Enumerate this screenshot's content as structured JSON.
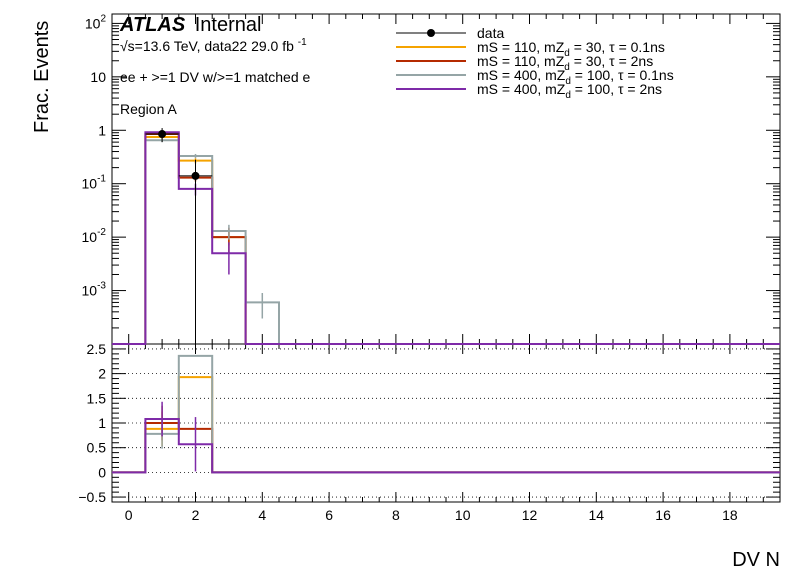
{
  "header": {
    "atlas": "ATLAS",
    "internal": "Internal",
    "energy": "√s=13.6 TeV, data22 29.0 fb",
    "energy_sup": "-1",
    "selection": "ee + >=1 DV w/>=1 matched e",
    "region": "Region A"
  },
  "colors": {
    "data": "#000000",
    "mS110_tau01": "#f5a300",
    "mS110_tau2": "#b52a00",
    "mS400_tau01": "#95a5a6",
    "mS400_tau2": "#7e2aa8"
  },
  "chart_data": [
    {
      "type": "line",
      "panel": "main",
      "ylabel": "Frac. Events",
      "xlabel": "DV N",
      "xlim": [
        -0.5,
        19.5
      ],
      "ylim": [
        0.0001,
        150
      ],
      "yscale": "log",
      "yticks": [
        0.001,
        0.01,
        0.1,
        1,
        10,
        100
      ],
      "ytick_labels": [
        {
          "base": "10",
          "exp": "-3"
        },
        {
          "base": "10",
          "exp": "-2"
        },
        {
          "base": "10",
          "exp": "-1"
        },
        {
          "base": "1",
          "exp": ""
        },
        {
          "base": "10",
          "exp": ""
        },
        {
          "base": "10",
          "exp": "2"
        }
      ],
      "legend_position": "top-right",
      "bin_edges": [
        0.5,
        1.5,
        2.5,
        3.5,
        4.5
      ],
      "series": [
        {
          "key": "mS110_tau01",
          "name": "mS = 110, mZ",
          "sub": "d",
          "name_rest": " = 30, τ = 0.1ns",
          "values": [
            0.75,
            0.27,
            0.01,
            0.0
          ],
          "errors": [
            0.05,
            0.03,
            0.003,
            0
          ]
        },
        {
          "key": "mS110_tau2",
          "name": "mS = 110, mZ",
          "sub": "d",
          "name_rest": " = 30, τ = 2ns",
          "values": [
            0.85,
            0.13,
            0.01,
            0.0
          ],
          "errors": [
            0.05,
            0.02,
            0.005,
            0
          ]
        },
        {
          "key": "mS400_tau01",
          "name": "mS = 400, mZ",
          "sub": "d",
          "name_rest": " = 100, τ = 0.1ns",
          "values": [
            0.65,
            0.33,
            0.013,
            0.0006
          ],
          "errors": [
            0.05,
            0.03,
            0.004,
            0.0003
          ]
        },
        {
          "key": "mS400_tau2",
          "name": "mS = 400, mZ",
          "sub": "d",
          "name_rest": " = 100, τ = 2ns",
          "values": [
            0.92,
            0.08,
            0.005,
            0.0
          ],
          "errors": [
            0.05,
            0.02,
            0.003,
            0
          ]
        }
      ],
      "data": {
        "key": "data",
        "name": "data",
        "x": [
          1,
          2
        ],
        "y": [
          0.85,
          0.14
        ],
        "yerr_low": [
          0.25,
          0.13999
        ],
        "yerr_high": [
          0.25,
          0.14
        ]
      }
    },
    {
      "type": "line",
      "panel": "ratio",
      "xlabel": "DV N",
      "xlim": [
        -0.5,
        19.5
      ],
      "ylim": [
        -0.6,
        2.6
      ],
      "xticks": [
        0,
        2,
        4,
        6,
        8,
        10,
        12,
        14,
        16,
        18
      ],
      "yticks": [
        -0.5,
        0,
        0.5,
        1,
        1.5,
        2,
        2.5
      ],
      "ytick_labels": [
        "−0.5",
        "0",
        "0.5",
        "1",
        "1.5",
        "2",
        "2.5"
      ],
      "grid": true,
      "bin_edges": [
        0.5,
        1.5,
        2.5
      ],
      "series": [
        {
          "key": "mS110_tau01",
          "values": [
            0.88,
            1.93
          ],
          "errors": [
            0.35,
            0
          ]
        },
        {
          "key": "mS110_tau2",
          "values": [
            1.0,
            0.88
          ],
          "errors": [
            0.35,
            0
          ]
        },
        {
          "key": "mS400_tau01",
          "values": [
            0.78,
            2.36
          ],
          "errors": [
            0.3,
            0
          ]
        },
        {
          "key": "mS400_tau2",
          "values": [
            1.08,
            0.57
          ],
          "errors": [
            0.35,
            0.55
          ]
        }
      ]
    }
  ]
}
